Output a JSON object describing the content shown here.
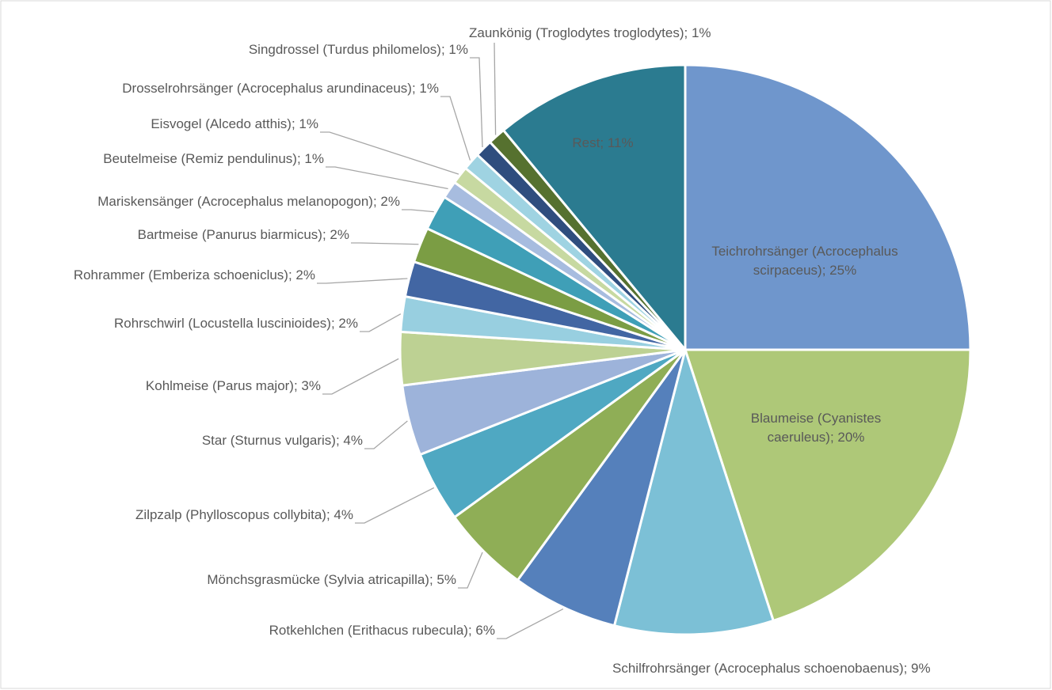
{
  "chart_data": {
    "type": "pie",
    "categories": [
      "Teichrohrsänger (Acrocephalus scirpaceus)",
      "Blaumeise (Cyanistes caeruleus)",
      "Schilfrohrsänger (Acrocephalus schoenobaenus)",
      "Rotkehlchen (Erithacus rubecula)",
      "Mönchsgrasmücke (Sylvia atricapilla)",
      "Zilpzalp (Phylloscopus collybita)",
      "Star (Sturnus vulgaris)",
      "Kohlmeise (Parus major)",
      "Rohrschwirl (Locustella luscinioides)",
      "Rohrammer (Emberiza schoeniclus)",
      "Bartmeise (Panurus biarmicus)",
      "Mariskensänger (Acrocephalus melanopogon)",
      "Beutelmeise (Remiz pendulinus)",
      "Eisvogel (Alcedo atthis)",
      "Drosselrohrsänger (Acrocephalus arundinaceus)",
      "Singdrossel (Turdus philomelos)",
      "Zaunkönig (Troglodytes troglodytes)",
      "Rest"
    ],
    "values": [
      25,
      20,
      9,
      6,
      5,
      4,
      4,
      3,
      2,
      2,
      2,
      2,
      1,
      1,
      1,
      1,
      1,
      11
    ],
    "value_labels": [
      "; 25%",
      "; 20%",
      "; 9%",
      "; 6%",
      "; 5%",
      "; 4%",
      "; 4%",
      "; 3%",
      "; 2%",
      "; 2%",
      "; 2%",
      "; 2%",
      "; 1%",
      "; 1%",
      "; 1%",
      "; 1%",
      "; 1%",
      "; 11%"
    ],
    "colors": [
      "#6f96cc",
      "#aec878",
      "#7cc0d6",
      "#5580bb",
      "#8fae56",
      "#4fa8c2",
      "#9db3da",
      "#bdd193",
      "#98cfe0",
      "#4266a3",
      "#7b9d44",
      "#3f9fb7",
      "#a7bcdf",
      "#c7d9a1",
      "#9fd3e2",
      "#2f4d7e",
      "#56712f",
      "#2b7b90"
    ]
  }
}
